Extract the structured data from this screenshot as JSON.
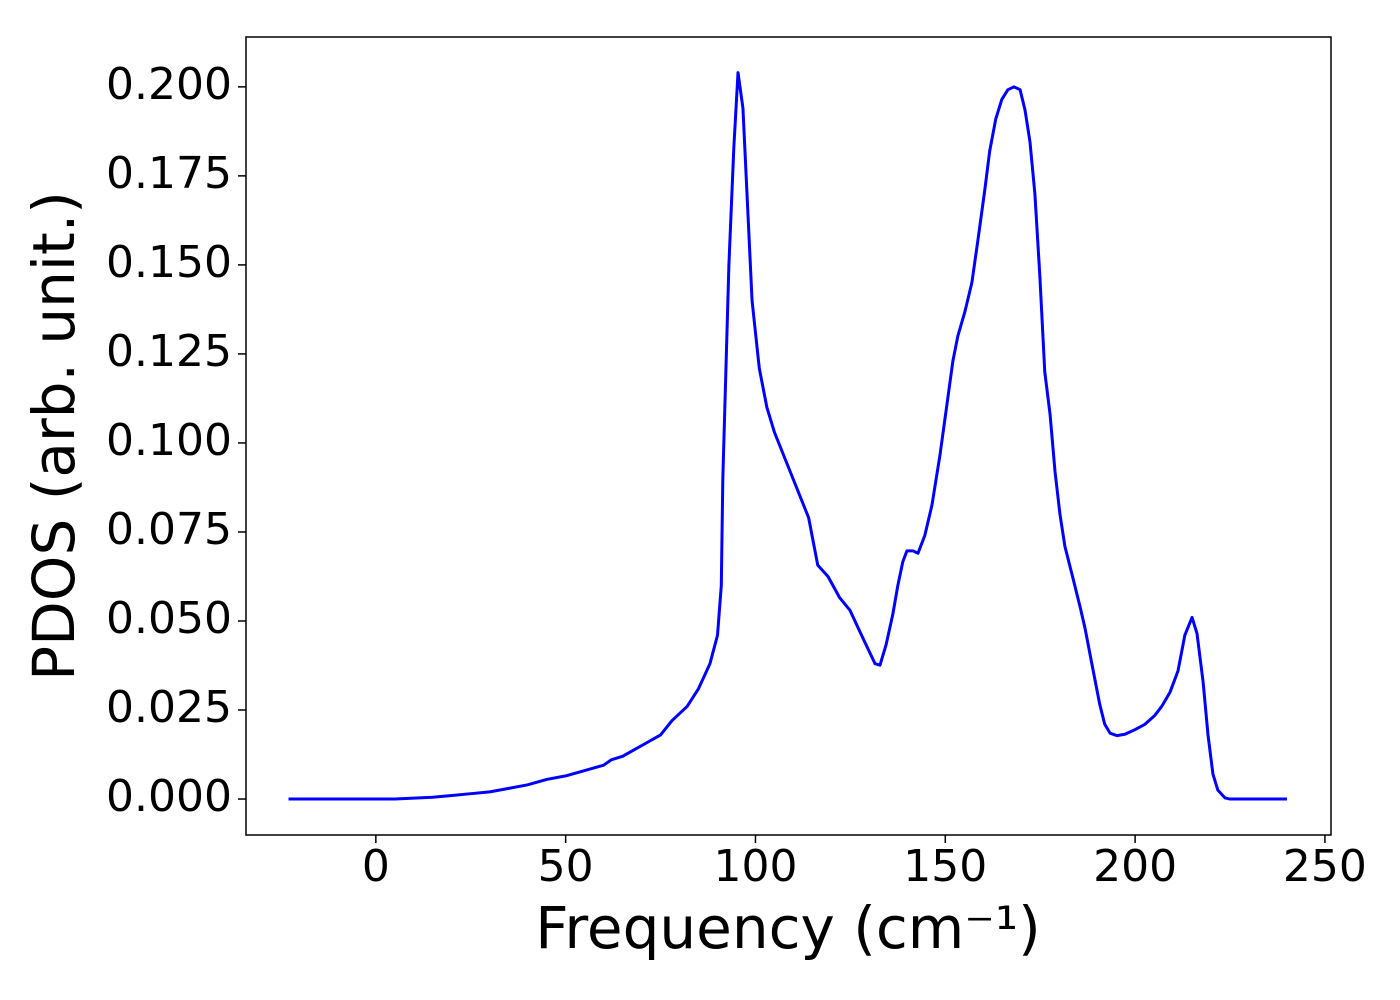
{
  "chart_data": {
    "type": "line",
    "x_label": "Frequency (cm⁻¹)",
    "y_label": "PDOS (arb. unit.)",
    "xlim": [
      -34.2,
      251.6
    ],
    "ylim": [
      -0.0101,
      0.214
    ],
    "xticks": [
      0,
      50,
      100,
      150,
      200,
      250
    ],
    "yticks": [
      {
        "value": 0,
        "label": "0.000"
      },
      {
        "value": 0.025,
        "label": "0.025"
      },
      {
        "value": 0.05,
        "label": "0.050"
      },
      {
        "value": 0.075,
        "label": "0.075"
      },
      {
        "value": 0.1,
        "label": "0.100"
      },
      {
        "value": 0.125,
        "label": "0.125"
      },
      {
        "value": 0.15,
        "label": "0.150"
      },
      {
        "value": 0.175,
        "label": "0.175"
      },
      {
        "value": 0.2,
        "label": "0.200"
      }
    ],
    "x": [
      -23,
      0,
      5,
      15,
      20,
      25,
      30,
      35,
      40,
      45,
      50,
      55,
      60,
      62,
      65,
      70,
      75,
      78,
      82,
      85,
      88,
      90,
      91,
      91.4,
      93,
      94.3,
      95.4,
      96.7,
      99.1,
      101,
      103,
      105,
      108,
      111,
      114,
      116.4,
      119.1,
      122.2,
      124.9,
      127.5,
      131.5,
      132.8,
      134.4,
      136.2,
      137.5,
      138.8,
      139.9,
      141.5,
      142.8,
      144.6,
      146.5,
      148.6,
      150.2,
      152,
      153.3,
      155.2,
      157,
      158.6,
      160.4,
      161.7,
      163.3,
      164.9,
      166.5,
      168.1,
      169.7,
      171,
      172.3,
      173.6,
      174.9,
      176.2,
      177.6,
      178.9,
      180.2,
      181.5,
      183.4,
      185.5,
      186.8,
      188.6,
      190.7,
      192,
      193.4,
      195.2,
      197.3,
      200,
      202.6,
      205.2,
      207,
      209.2,
      211.3,
      213.1,
      215,
      216.3,
      217.9,
      219.2,
      220.5,
      221.8,
      223.7,
      225,
      240
    ],
    "series": [
      {
        "name": "PDOS",
        "color": "#0000ff",
        "values": [
          0,
          0,
          0,
          0.0005,
          0.001,
          0.0015,
          0.002,
          0.003,
          0.004,
          0.0055,
          0.0065,
          0.008,
          0.0095,
          0.011,
          0.012,
          0.015,
          0.018,
          0.022,
          0.026,
          0.031,
          0.038,
          0.046,
          0.06,
          0.09,
          0.15,
          0.183,
          0.204,
          0.194,
          0.14,
          0.121,
          0.11,
          0.103,
          0.095,
          0.087,
          0.079,
          0.0657,
          0.0625,
          0.0565,
          0.053,
          0.047,
          0.038,
          0.0376,
          0.0433,
          0.052,
          0.06,
          0.0666,
          0.0697,
          0.0697,
          0.069,
          0.074,
          0.0826,
          0.0966,
          0.109,
          0.123,
          0.13,
          0.137,
          0.145,
          0.157,
          0.171,
          0.182,
          0.191,
          0.1965,
          0.1992,
          0.2,
          0.1992,
          0.1935,
          0.1846,
          0.17,
          0.147,
          0.12,
          0.108,
          0.092,
          0.08,
          0.071,
          0.063,
          0.054,
          0.048,
          0.038,
          0.0265,
          0.021,
          0.0185,
          0.0178,
          0.0182,
          0.0195,
          0.021,
          0.0235,
          0.026,
          0.03,
          0.036,
          0.046,
          0.051,
          0.0465,
          0.033,
          0.018,
          0.007,
          0.0025,
          0.0003,
          0,
          0
        ]
      }
    ]
  }
}
